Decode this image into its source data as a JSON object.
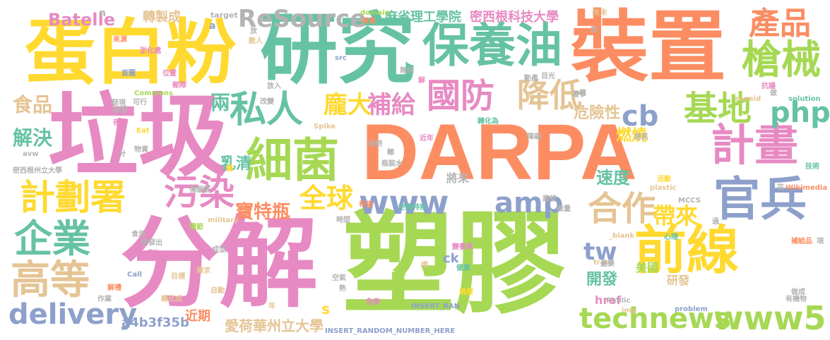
{
  "colors": {
    "background": "#ffffff",
    "orange": "#fc8d62",
    "green": "#66c2a5",
    "blue": "#8da0cb",
    "pink": "#e78ac3",
    "lime": "#a6d854",
    "yellow": "#ffd92f",
    "tan": "#e5c494",
    "gray": "#b3b3b3"
  },
  "words": [
    "DARPA",
    "塑膠",
    "分解",
    "垃圾",
    "蛋白粉",
    "研究",
    "裝置",
    "保養油",
    "前線",
    "細菌",
    "私人",
    "國防",
    "基地",
    "計畫",
    "計劃署",
    "污染",
    "官兵",
    "企業",
    "高等",
    "合作",
    "產品",
    "槍械",
    "降低",
    "補給",
    "龐大",
    "兩",
    "cb",
    "php",
    "食品",
    "解決",
    "全球",
    "寶特瓶",
    "www",
    "amp",
    "technews",
    "www5",
    "delivery",
    "tw",
    "帶來",
    "速度",
    "乳清",
    "危險性",
    "燃燒",
    "ReSource",
    "Batelle",
    "轉製成",
    "麻省理工學院",
    "密西根科技大學",
    "愛荷華州立大學",
    "a4b3f35b",
    "近期",
    "開發",
    "美國",
    "研發",
    "href",
    "ck",
    "s",
    "target",
    "domain",
    "美軍",
    "尚未",
    "放",
    "敵人",
    "n",
    "a",
    "來源",
    "淤化處",
    "首圖",
    "位置",
    "郵隊",
    "發現",
    "說服",
    "可行",
    "夜間",
    "Commons",
    "Eat",
    "物資",
    "Spike",
    "zoneid",
    "改變",
    "src",
    "img",
    "INSERT_RANDOM_NUMBER_HERE",
    "INSERT_RAN",
    "MCCS",
    "plastic",
    "Wikimedia",
    "solution",
    "技術",
    "抗議",
    "problem",
    "Public",
    "有機物",
    "補給品",
    "心理",
    "_blank",
    "trash",
    "Call",
    "military",
    "作業",
    "時間",
    "空氣",
    "健康",
    "熱",
    "危害",
    "環節",
    "成型",
    "需求",
    "自動",
    "成功",
    "食用",
    "開發出",
    "年",
    "遇瘦",
    "瓶裝水",
    "將來",
    "始終",
    "輸",
    "近年",
    "轉化為",
    "無成",
    "障礙",
    "活動",
    "建設",
    "微量",
    "居民",
    "加",
    "目光",
    "著手",
    "做",
    "花",
    "項",
    "希望",
    "空寶特瓶",
    "變書素",
    "解",
    "動產",
    "放入",
    "最要",
    "解禮",
    "轉化成",
    "目標",
    "喝",
    "傷腦筋",
    "密西根州立大學",
    "avw",
    "分",
    "驗",
    "過",
    "做成",
    "著"
  ]
}
